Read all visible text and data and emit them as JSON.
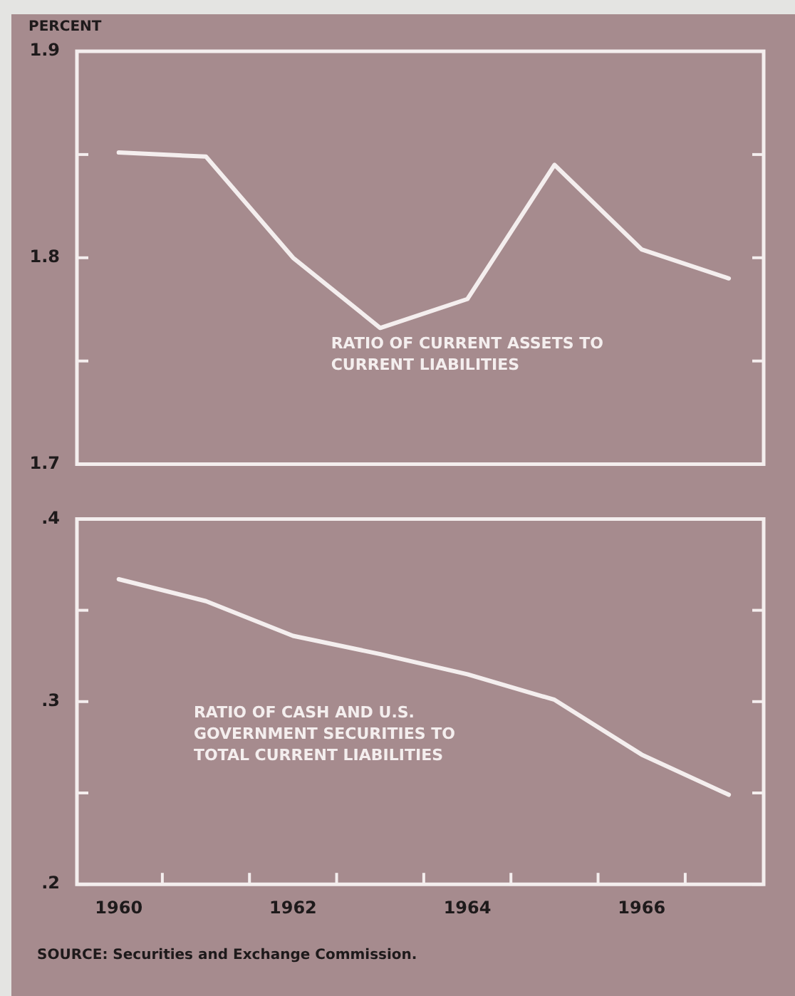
{
  "chart_data": [
    {
      "type": "line",
      "ylabel": "PERCENT",
      "x": [
        1960,
        1961,
        1962,
        1963,
        1964,
        1965,
        1966,
        1967
      ],
      "series": [
        {
          "name": "RATIO OF CURRENT ASSETS TO CURRENT LIABILITIES",
          "color": "#f4eeee",
          "values": [
            1.851,
            1.849,
            1.8,
            1.766,
            1.78,
            1.845,
            1.804,
            1.79
          ]
        }
      ],
      "xlim": [
        1959.52,
        1967.4
      ],
      "ylim": [
        1.7,
        1.9
      ],
      "yticks": [
        1.7,
        {
          "value": 1.75,
          "label": null
        },
        1.8,
        {
          "value": 1.85,
          "label": null
        },
        1.9
      ],
      "tick_labels": "y",
      "grid": false,
      "legend": false,
      "marker": "none"
    },
    {
      "type": "line",
      "x": [
        1960,
        1961,
        1962,
        1963,
        1964,
        1965,
        1966,
        1967
      ],
      "series": [
        {
          "name": "RATIO OF CASH AND U.S. GOVERNMENT SECURITIES TO TOTAL CURRENT LIABILITIES",
          "color": "#f4eeee",
          "values": [
            0.367,
            0.355,
            0.336,
            0.326,
            0.315,
            0.301,
            0.271,
            0.249
          ]
        }
      ],
      "xlim": [
        1959.52,
        1967.4
      ],
      "ylim": [
        0.2,
        0.4
      ],
      "xticks": [
        1960,
        {
          "value": 1960.5,
          "label": null
        },
        {
          "value": 1961.5,
          "label": null
        },
        1962,
        {
          "value": 1962.5,
          "label": null
        },
        {
          "value": 1963.5,
          "label": null
        },
        1964,
        {
          "value": 1964.5,
          "label": null
        },
        {
          "value": 1965.5,
          "label": null
        },
        1966,
        {
          "value": 1966.5,
          "label": null
        }
      ],
      "yticks": [
        {
          "value": 0.2,
          "label": ".2"
        },
        {
          "value": 0.25,
          "label": null
        },
        {
          "value": 0.3,
          "label": ".3"
        },
        {
          "value": 0.35,
          "label": null
        },
        {
          "value": 0.4,
          "label": ".4"
        }
      ],
      "grid": false,
      "legend": false,
      "marker": "none",
      "annotations": [
        "SOURCE: Securities and Exchange Commission."
      ]
    }
  ]
}
